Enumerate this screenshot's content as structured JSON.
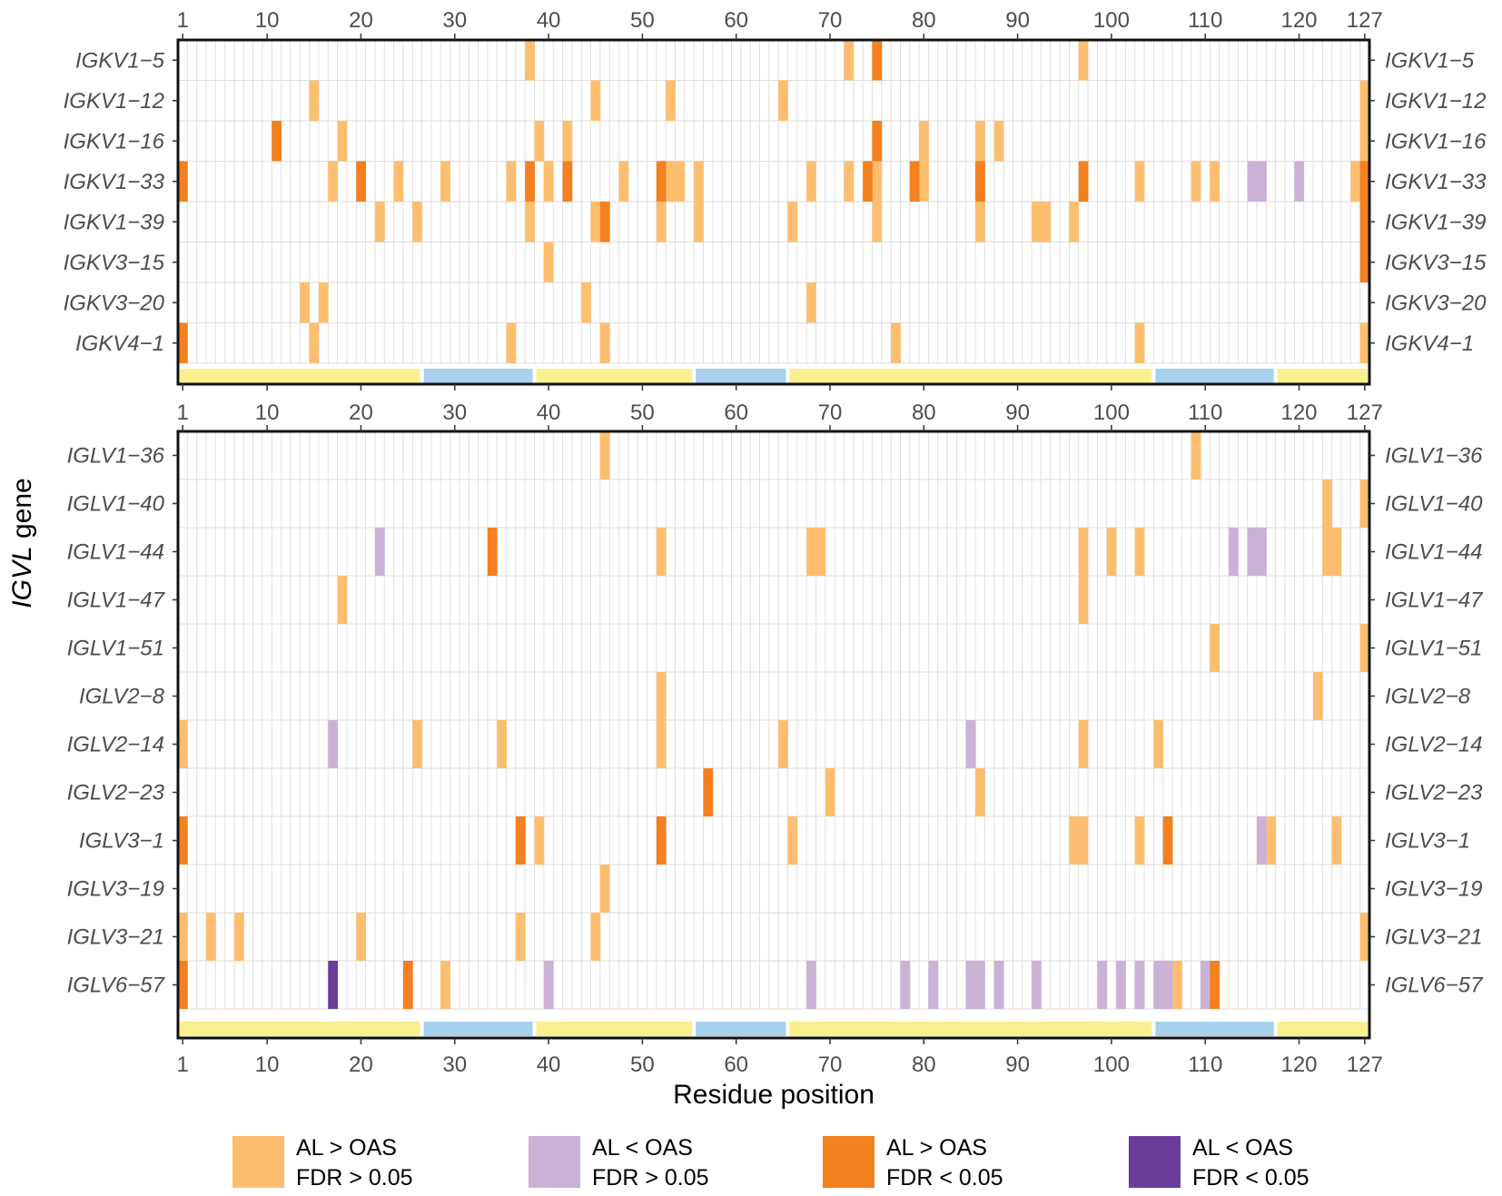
{
  "chart_data": {
    "type": "heatmap",
    "xlabel": "Residue position",
    "ylabel_italic": "IGVL",
    "ylabel_rest": " gene",
    "x_range": [
      1,
      127
    ],
    "x_ticks": [
      1,
      10,
      20,
      30,
      40,
      50,
      60,
      70,
      80,
      90,
      100,
      110,
      120,
      127
    ],
    "colors": {
      "al_gt_ns": "#FDBF6F",
      "al_lt_ns": "#CAB2D6",
      "al_gt_sig": "#F4801F",
      "al_lt_sig": "#6A3D9A",
      "region_fr": "#FAF08F",
      "region_cdr": "#A8D1EE",
      "grid": "#DEDEDE"
    },
    "region_bands": [
      {
        "type": "fr",
        "start": 1,
        "end": 26
      },
      {
        "type": "cdr",
        "start": 27,
        "end": 38
      },
      {
        "type": "fr",
        "start": 39,
        "end": 55
      },
      {
        "type": "cdr",
        "start": 56,
        "end": 65
      },
      {
        "type": "fr",
        "start": 66,
        "end": 104
      },
      {
        "type": "cdr",
        "start": 105,
        "end": 117
      },
      {
        "type": "fr",
        "start": 118,
        "end": 127
      }
    ],
    "legend": [
      {
        "key": "al_gt_ns",
        "line1": "AL > OAS",
        "line2": "FDR > 0.05"
      },
      {
        "key": "al_lt_ns",
        "line1": "AL < OAS",
        "line2": "FDR > 0.05"
      },
      {
        "key": "al_gt_sig",
        "line1": "AL > OAS",
        "line2": "FDR < 0.05"
      },
      {
        "key": "al_lt_sig",
        "line1": "AL < OAS",
        "line2": "FDR < 0.05"
      }
    ],
    "panels": [
      {
        "name": "kappa",
        "genes": [
          {
            "gene": "IGKV1−5",
            "al_gt_ns": [
              38,
              72,
              97
            ],
            "al_gt_sig": [
              75
            ],
            "al_lt_ns": [],
            "al_lt_sig": []
          },
          {
            "gene": "IGKV1−12",
            "al_gt_ns": [
              15,
              45,
              53,
              65,
              127
            ],
            "al_gt_sig": [],
            "al_lt_ns": [],
            "al_lt_sig": []
          },
          {
            "gene": "IGKV1−16",
            "al_gt_ns": [
              18,
              39,
              42,
              80,
              86,
              88,
              127
            ],
            "al_gt_sig": [
              11,
              75
            ],
            "al_lt_ns": [],
            "al_lt_sig": []
          },
          {
            "gene": "IGKV1−33",
            "al_gt_ns": [
              17,
              24,
              29,
              36,
              40,
              48,
              53,
              54,
              56,
              68,
              72,
              75,
              80,
              103,
              109,
              111,
              126
            ],
            "al_gt_sig": [
              1,
              20,
              38,
              42,
              52,
              74,
              79,
              86,
              97,
              127
            ],
            "al_lt_ns": [
              115,
              116,
              120
            ],
            "al_lt_sig": []
          },
          {
            "gene": "IGKV1−39",
            "al_gt_ns": [
              22,
              26,
              38,
              45,
              52,
              56,
              66,
              75,
              86,
              92,
              93,
              96
            ],
            "al_gt_sig": [
              46,
              127
            ],
            "al_lt_ns": [],
            "al_lt_sig": []
          },
          {
            "gene": "IGKV3−15",
            "al_gt_ns": [
              40
            ],
            "al_gt_sig": [
              127
            ],
            "al_lt_ns": [],
            "al_lt_sig": []
          },
          {
            "gene": "IGKV3−20",
            "al_gt_ns": [
              14,
              16,
              44,
              68
            ],
            "al_gt_sig": [],
            "al_lt_ns": [],
            "al_lt_sig": []
          },
          {
            "gene": "IGKV4−1",
            "al_gt_ns": [
              15,
              36,
              46,
              77,
              103,
              127
            ],
            "al_gt_sig": [
              1
            ],
            "al_lt_ns": [],
            "al_lt_sig": []
          }
        ]
      },
      {
        "name": "lambda",
        "genes": [
          {
            "gene": "IGLV1−36",
            "al_gt_ns": [
              46,
              109
            ],
            "al_gt_sig": [],
            "al_lt_ns": [],
            "al_lt_sig": []
          },
          {
            "gene": "IGLV1−40",
            "al_gt_ns": [
              123,
              127
            ],
            "al_gt_sig": [],
            "al_lt_ns": [],
            "al_lt_sig": []
          },
          {
            "gene": "IGLV1−44",
            "al_gt_ns": [
              52,
              68,
              69,
              97,
              100,
              103,
              123,
              124
            ],
            "al_gt_sig": [
              34
            ],
            "al_lt_ns": [
              22,
              113,
              115,
              116
            ],
            "al_lt_sig": []
          },
          {
            "gene": "IGLV1−47",
            "al_gt_ns": [
              18,
              97
            ],
            "al_gt_sig": [],
            "al_lt_ns": [],
            "al_lt_sig": []
          },
          {
            "gene": "IGLV1−51",
            "al_gt_ns": [
              111,
              127
            ],
            "al_gt_sig": [],
            "al_lt_ns": [],
            "al_lt_sig": []
          },
          {
            "gene": "IGLV2−8",
            "al_gt_ns": [
              52,
              122
            ],
            "al_gt_sig": [],
            "al_lt_ns": [],
            "al_lt_sig": []
          },
          {
            "gene": "IGLV2−14",
            "al_gt_ns": [
              1,
              26,
              35,
              52,
              65,
              97,
              105
            ],
            "al_gt_sig": [],
            "al_lt_ns": [
              17,
              85
            ],
            "al_lt_sig": []
          },
          {
            "gene": "IGLV2−23",
            "al_gt_ns": [
              70,
              86
            ],
            "al_gt_sig": [
              57
            ],
            "al_lt_ns": [],
            "al_lt_sig": []
          },
          {
            "gene": "IGLV3−1",
            "al_gt_ns": [
              39,
              66,
              96,
              97,
              103,
              117,
              124
            ],
            "al_gt_sig": [
              1,
              37,
              52,
              106
            ],
            "al_lt_ns": [
              116
            ],
            "al_lt_sig": []
          },
          {
            "gene": "IGLV3−19",
            "al_gt_ns": [
              46
            ],
            "al_gt_sig": [],
            "al_lt_ns": [],
            "al_lt_sig": []
          },
          {
            "gene": "IGLV3−21",
            "al_gt_ns": [
              1,
              4,
              7,
              20,
              37,
              45,
              127
            ],
            "al_gt_sig": [],
            "al_lt_ns": [],
            "al_lt_sig": []
          },
          {
            "gene": "IGLV6−57",
            "al_gt_ns": [
              29,
              107
            ],
            "al_gt_sig": [
              1,
              25,
              111
            ],
            "al_lt_ns": [
              40,
              68,
              78,
              81,
              85,
              86,
              88,
              92,
              99,
              101,
              103,
              105,
              106,
              110
            ],
            "al_lt_sig": [
              17
            ]
          }
        ]
      }
    ]
  }
}
